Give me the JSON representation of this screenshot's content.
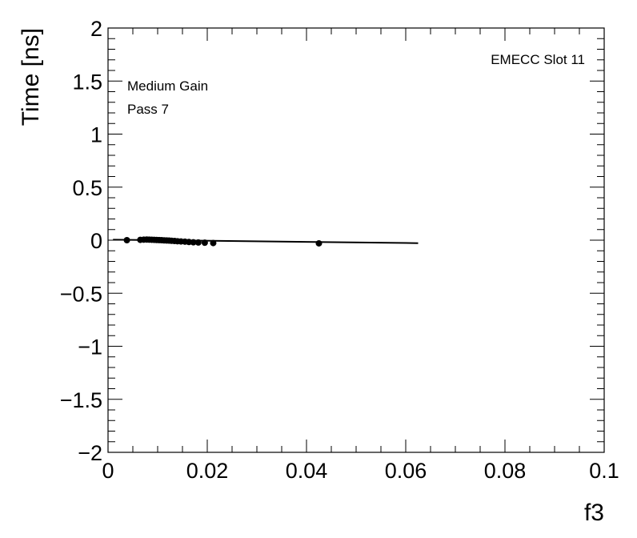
{
  "chart_data": {
    "type": "scatter",
    "xlabel": "f3",
    "ylabel": "Time [ns]",
    "xlim": [
      0,
      0.1
    ],
    "ylim": [
      -2,
      2
    ],
    "x_ticks": [
      0,
      0.02,
      0.04,
      0.06,
      0.08,
      0.1
    ],
    "x_tick_labels": [
      "0",
      "0.02",
      "0.04",
      "0.06",
      "0.08",
      "0.1"
    ],
    "y_ticks": [
      -2,
      -1.5,
      -1,
      -0.5,
      0,
      0.5,
      1,
      1.5,
      2
    ],
    "y_tick_labels": [
      "−2",
      "−1.5",
      "−1",
      "−0.5",
      "0",
      "0.5",
      "1",
      "1.5",
      "2"
    ],
    "annotations": {
      "top_right": "EMECC Slot 11",
      "line1": "Medium Gain",
      "line2": "Pass 7"
    },
    "series": [
      {
        "x": [
          0.0038,
          0.0065,
          0.0072,
          0.0078,
          0.0083,
          0.0088,
          0.0093,
          0.0098,
          0.0103,
          0.0108,
          0.0113,
          0.0118,
          0.0123,
          0.0128,
          0.0134,
          0.014,
          0.0147,
          0.0155,
          0.0163,
          0.0172,
          0.0182,
          0.0195,
          0.0212,
          0.0425
        ],
        "y": [
          0.0,
          0.003,
          0.005,
          0.006,
          0.005,
          0.004,
          0.003,
          0.002,
          0.001,
          0.0,
          -0.002,
          -0.003,
          -0.004,
          -0.006,
          -0.008,
          -0.01,
          -0.012,
          -0.014,
          -0.017,
          -0.02,
          -0.022,
          -0.024,
          -0.027,
          -0.03
        ]
      }
    ],
    "fit_line": {
      "x": [
        0.001,
        0.0625
      ],
      "y": [
        0.005,
        -0.028
      ]
    }
  }
}
